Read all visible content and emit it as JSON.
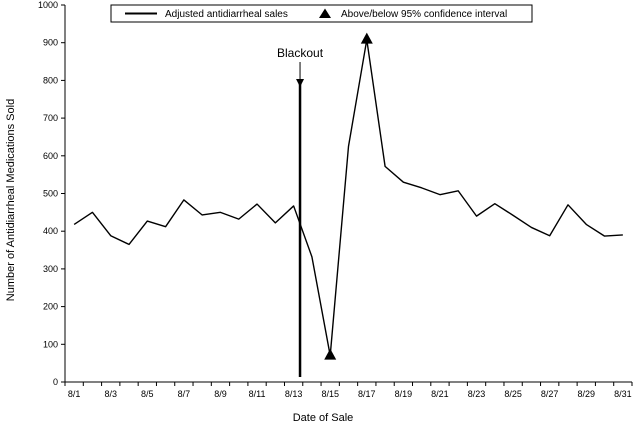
{
  "chart_data": {
    "type": "line",
    "xlabel": "Date of Sale",
    "ylabel": "Number of Antidiarrheal Medications Sold",
    "ylim": [
      0,
      1000
    ],
    "yticks": [
      0,
      100,
      200,
      300,
      400,
      500,
      600,
      700,
      800,
      900,
      1000
    ],
    "x_tick_labels": [
      "8/1",
      "8/3",
      "8/5",
      "8/7",
      "8/9",
      "8/11",
      "8/13",
      "8/15",
      "8/17",
      "8/19",
      "8/21",
      "8/23",
      "8/25",
      "8/27",
      "8/29",
      "8/31"
    ],
    "categories": [
      "8/1",
      "8/2",
      "8/3",
      "8/4",
      "8/5",
      "8/6",
      "8/7",
      "8/8",
      "8/9",
      "8/10",
      "8/11",
      "8/12",
      "8/13",
      "8/14",
      "8/15",
      "8/16",
      "8/17",
      "8/18",
      "8/19",
      "8/20",
      "8/21",
      "8/22",
      "8/23",
      "8/24",
      "8/25",
      "8/26",
      "8/27",
      "8/28",
      "8/29",
      "8/30",
      "8/31"
    ],
    "series": [
      {
        "name": "Adjusted antidiarrheal sales",
        "values": [
          418,
          450,
          388,
          365,
          427,
          412,
          483,
          443,
          450,
          432,
          472,
          422,
          467,
          332,
          70,
          625,
          908,
          572,
          530,
          515,
          497,
          507,
          440,
          473,
          442,
          410,
          388,
          470,
          418,
          387,
          390
        ]
      }
    ],
    "markers": {
      "name": "Above/below 95% confidence interval",
      "points": [
        {
          "x": "8/15",
          "y": 70
        },
        {
          "x": "8/17",
          "y": 908
        }
      ]
    },
    "annotations": [
      {
        "text": "Blackout",
        "x": "8/14",
        "arrow_tip_value": 785
      }
    ],
    "legend_position": "top-center",
    "grid": false
  }
}
